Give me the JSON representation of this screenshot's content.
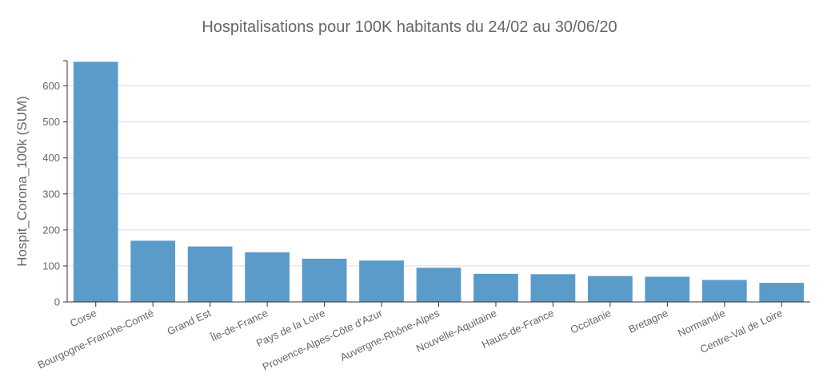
{
  "chart_data": {
    "type": "bar",
    "title": "Hospitalisations pour 100K habitants du 24/02 au 30/06/20",
    "xlabel": "",
    "ylabel": "Hospit_Corona_100k (SUM)",
    "ylim": [
      0,
      670
    ],
    "yticks": [
      0,
      100,
      200,
      300,
      400,
      500,
      600
    ],
    "grid": true,
    "bar_color": "#5b9bc9",
    "categories": [
      "Corse",
      "Bourgogne-Franche-Comté",
      "Grand Est",
      "Île-de-France",
      "Pays de la Loire",
      "Provence-Alpes-Côte d'Azur",
      "Auvergne-Rhône-Alpes",
      "Nouvelle-Aquitaine",
      "Hauts-de-France",
      "Occitanie",
      "Bretagne",
      "Normandie",
      "Centre-Val de Loire"
    ],
    "values": [
      667,
      170,
      154,
      138,
      120,
      115,
      95,
      78,
      77,
      72,
      70,
      61,
      53
    ]
  }
}
